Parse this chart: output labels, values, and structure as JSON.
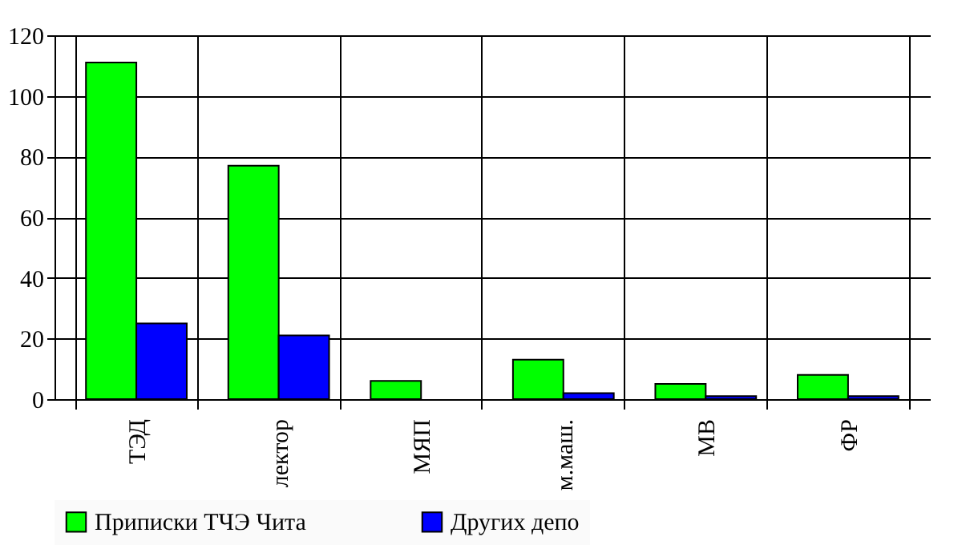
{
  "chart_data": {
    "type": "bar",
    "categories": [
      "ТЭД",
      "лектор",
      "МЯП",
      "м.маш.",
      "МВ",
      "ФР"
    ],
    "series": [
      {
        "name": "Приписки ТЧЭ Чита",
        "color": "#00ff00",
        "values": [
          111,
          77,
          6,
          13,
          5,
          8
        ]
      },
      {
        "name": "Других депо",
        "color": "#0000ff",
        "values": [
          25,
          21,
          null,
          2,
          1,
          1
        ]
      }
    ],
    "ylim": [
      0,
      120
    ],
    "yticks": [
      0,
      20,
      40,
      60,
      80,
      100,
      120
    ],
    "grid": true,
    "legend": "bottom"
  }
}
